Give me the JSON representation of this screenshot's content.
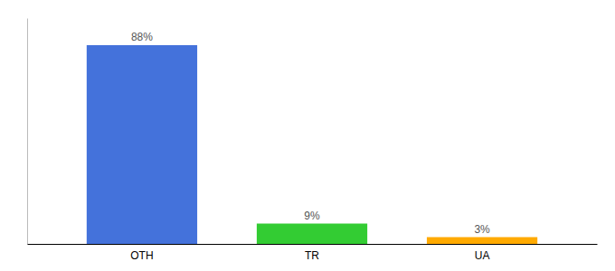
{
  "chart_data": {
    "type": "bar",
    "categories": [
      "OTH",
      "TR",
      "UA"
    ],
    "values": [
      88,
      9,
      3
    ],
    "value_labels": [
      "88%",
      "9%",
      "3%"
    ],
    "colors": [
      "#4472db",
      "#33cc33",
      "#ffaa00"
    ],
    "ylim": [
      0,
      100
    ],
    "data_labels": true,
    "tick_labels": "x",
    "grid": false
  }
}
